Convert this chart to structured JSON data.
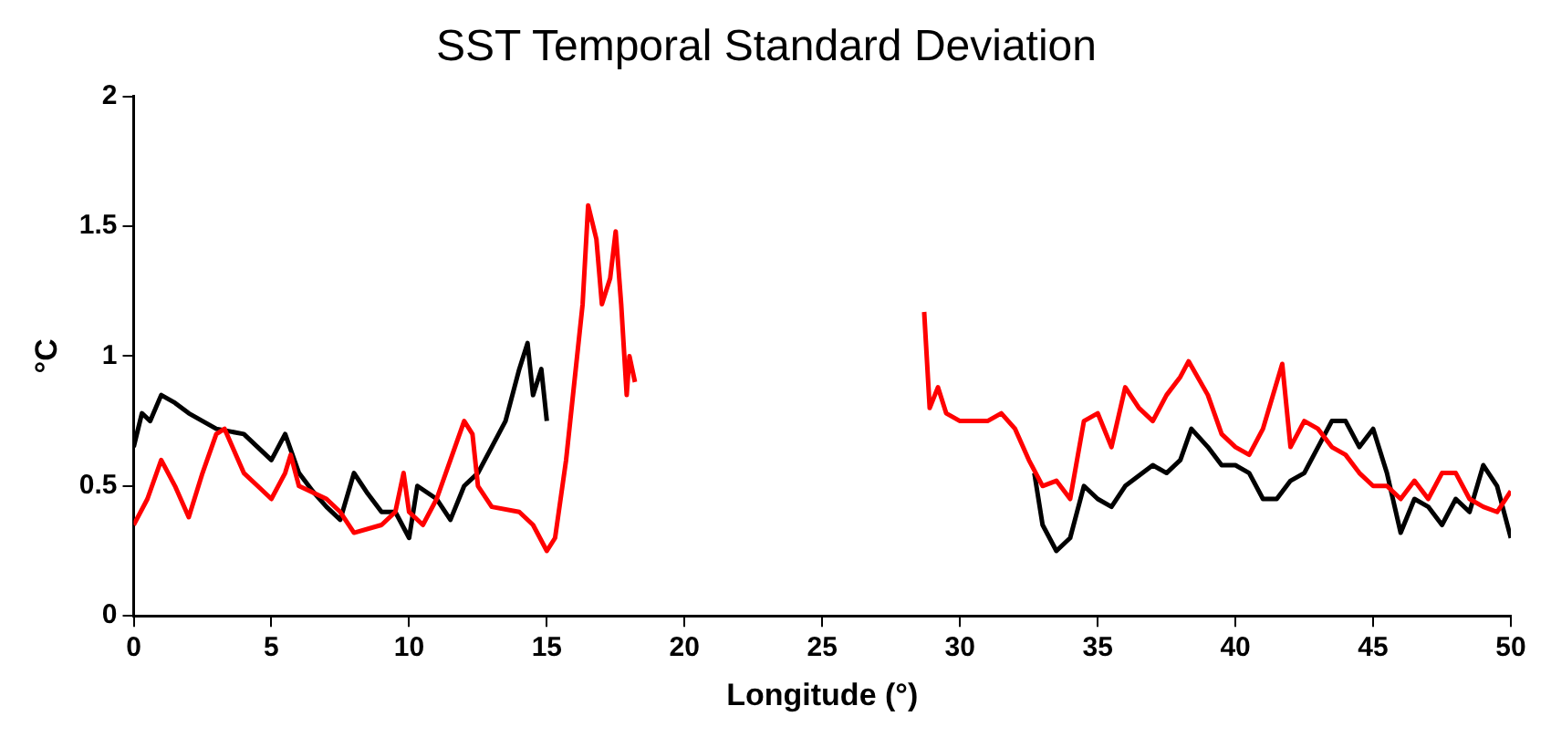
{
  "chart_data": {
    "type": "line",
    "title": "SST Temporal Standard Deviation",
    "xlabel": "Longitude (°)",
    "ylabel": "°C",
    "xlim": [
      0,
      50
    ],
    "xticks": [
      0,
      5,
      10,
      15,
      20,
      25,
      30,
      35,
      40,
      45,
      50
    ],
    "ylim": [
      0,
      2
    ],
    "yticks": [
      0,
      0.5,
      1,
      1.5,
      2
    ],
    "grid": false,
    "legend": false,
    "marker": "none",
    "line_style": "solid",
    "series": [
      {
        "color": "#ff0000",
        "x": [
          0,
          0.5,
          1,
          1.5,
          2,
          2.5,
          3,
          3.3,
          4,
          4.5,
          5,
          5.5,
          5.7,
          6,
          7,
          7.5,
          8,
          9,
          9.5,
          9.8,
          10,
          10.5,
          11,
          11.5,
          12,
          12.3,
          12.5,
          13,
          14,
          14.5,
          15,
          15.3,
          15.7,
          16,
          16.3,
          16.5,
          16.8,
          17,
          17.3,
          17.5,
          17.7,
          17.9,
          18,
          18.2,
          23,
          28.7,
          28.9,
          29.2,
          29.5,
          30,
          31,
          31.5,
          32,
          32.5,
          33,
          33.5,
          34,
          34.5,
          35,
          35.5,
          36,
          36.5,
          37,
          37.5,
          38,
          38.3,
          39,
          39.5,
          40,
          40.5,
          41,
          41.7,
          42,
          42.5,
          43,
          43.5,
          44,
          44.5,
          45,
          45.5,
          46,
          46.5,
          47,
          47.5,
          48,
          48.5,
          49,
          49.5,
          50
        ],
        "values": [
          0.35,
          0.45,
          0.6,
          0.5,
          0.38,
          0.55,
          0.7,
          0.72,
          0.55,
          0.5,
          0.45,
          0.55,
          0.62,
          0.5,
          0.45,
          0.4,
          0.32,
          0.35,
          0.4,
          0.55,
          0.4,
          0.35,
          0.45,
          0.6,
          0.75,
          0.7,
          0.5,
          0.42,
          0.4,
          0.35,
          0.25,
          0.3,
          0.6,
          0.9,
          1.2,
          1.58,
          1.45,
          1.2,
          1.3,
          1.48,
          1.2,
          0.85,
          1.0,
          0.9,
          null,
          1.17,
          0.8,
          0.88,
          0.78,
          0.75,
          0.75,
          0.78,
          0.72,
          0.6,
          0.5,
          0.52,
          0.45,
          0.75,
          0.78,
          0.65,
          0.88,
          0.8,
          0.75,
          0.85,
          0.92,
          0.98,
          0.85,
          0.7,
          0.65,
          0.62,
          0.72,
          0.97,
          0.65,
          0.75,
          0.72,
          0.65,
          0.62,
          0.55,
          0.5,
          0.5,
          0.45,
          0.52,
          0.45,
          0.55,
          0.55,
          0.45,
          0.42,
          0.4,
          0.48
        ]
      },
      {
        "color": "#000000",
        "x": [
          0,
          0.3,
          0.6,
          1,
          1.5,
          2,
          3,
          4,
          4.5,
          5,
          5.5,
          6,
          6.5,
          7,
          7.5,
          8,
          8.5,
          9,
          9.5,
          10,
          10.3,
          11,
          11.5,
          12,
          12.5,
          13,
          13.5,
          14,
          14.3,
          14.5,
          14.8,
          15,
          24,
          32.7,
          33,
          33.5,
          34,
          34.5,
          35,
          35.5,
          36,
          37,
          37.5,
          38,
          38.4,
          39,
          39.5,
          40,
          40.5,
          41,
          41.5,
          42,
          42.5,
          43,
          43.5,
          44,
          44.5,
          45,
          45.5,
          46,
          46.5,
          47,
          47.5,
          48,
          48.5,
          49,
          49.5,
          50
        ],
        "values": [
          0.65,
          0.78,
          0.75,
          0.85,
          0.82,
          0.78,
          0.72,
          0.7,
          0.65,
          0.6,
          0.7,
          0.55,
          0.48,
          0.42,
          0.37,
          0.55,
          0.47,
          0.4,
          0.4,
          0.3,
          0.5,
          0.45,
          0.37,
          0.5,
          0.55,
          0.65,
          0.75,
          0.95,
          1.05,
          0.85,
          0.95,
          0.75,
          null,
          0.55,
          0.35,
          0.25,
          0.3,
          0.5,
          0.45,
          0.42,
          0.5,
          0.58,
          0.55,
          0.6,
          0.72,
          0.65,
          0.58,
          0.58,
          0.55,
          0.45,
          0.45,
          0.52,
          0.55,
          0.65,
          0.75,
          0.75,
          0.65,
          0.72,
          0.55,
          0.32,
          0.45,
          0.42,
          0.35,
          0.45,
          0.4,
          0.58,
          0.5,
          0.3
        ]
      }
    ]
  }
}
